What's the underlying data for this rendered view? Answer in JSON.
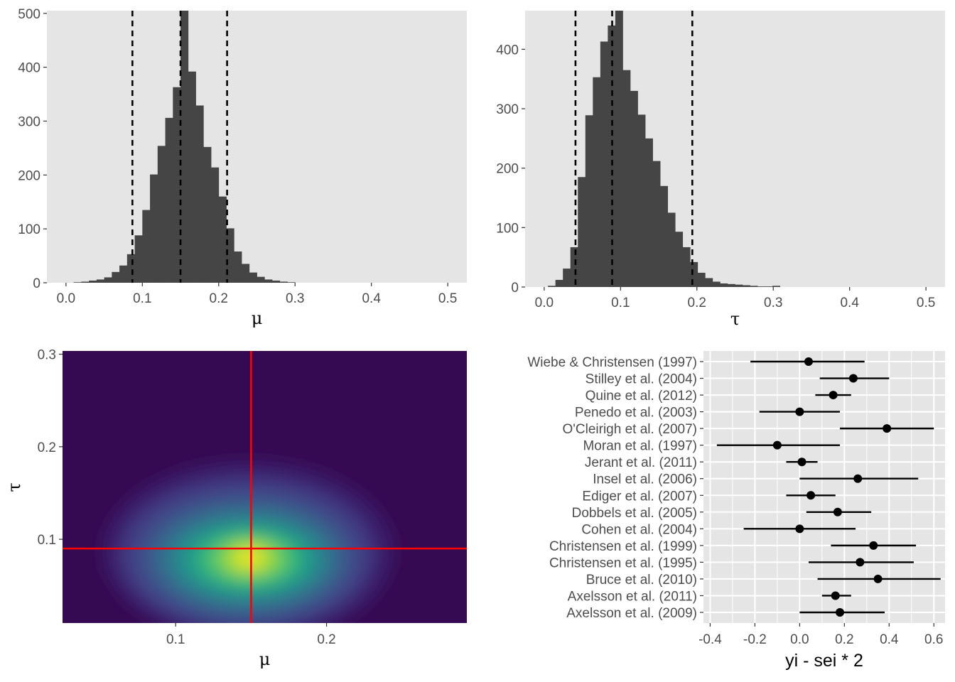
{
  "colors": {
    "panel_bg": "#e5e5e5",
    "bar": "#454545",
    "grid": "#ffffff",
    "crosshair": "#ff0000",
    "tick_text": "#4d4d4d"
  },
  "chart_data": [
    {
      "type": "bar",
      "id": "mu_hist",
      "xlabel": "μ",
      "xlim": [
        -0.025,
        0.525
      ],
      "ylim": [
        0,
        505
      ],
      "xticks": [
        "0.0",
        "0.1",
        "0.2",
        "0.3",
        "0.4",
        "0.5"
      ],
      "yticks": [
        "0",
        "100",
        "200",
        "300",
        "400",
        "500"
      ],
      "bin_width": 0.01,
      "bin_starts": [
        0.01,
        0.02,
        0.03,
        0.04,
        0.05,
        0.06,
        0.07,
        0.08,
        0.09,
        0.1,
        0.11,
        0.12,
        0.13,
        0.14,
        0.15,
        0.16,
        0.17,
        0.18,
        0.19,
        0.2,
        0.21,
        0.22,
        0.23,
        0.24,
        0.25,
        0.26,
        0.27,
        0.28,
        0.29
      ],
      "counts": [
        1,
        2,
        4,
        6,
        10,
        20,
        32,
        53,
        88,
        135,
        201,
        254,
        306,
        363,
        505,
        392,
        329,
        252,
        214,
        160,
        101,
        58,
        35,
        19,
        11,
        6,
        4,
        2,
        1
      ],
      "vlines": [
        0.087,
        0.15,
        0.211
      ],
      "grid": false
    },
    {
      "type": "bar",
      "id": "tau_hist",
      "xlabel": "τ",
      "xlim": [
        -0.025,
        0.525
      ],
      "ylim": [
        0,
        465
      ],
      "xticks": [
        "0.0",
        "0.1",
        "0.2",
        "0.3",
        "0.4",
        "0.5"
      ],
      "yticks": [
        "0",
        "100",
        "200",
        "300",
        "400"
      ],
      "bin_width": 0.0098,
      "bin_starts": [
        0.0049,
        0.0147,
        0.0245,
        0.0343,
        0.0441,
        0.0539,
        0.0637,
        0.0735,
        0.0833,
        0.0931,
        0.1029,
        0.1127,
        0.1225,
        0.1323,
        0.1421,
        0.1519,
        0.1617,
        0.1715,
        0.1813,
        0.1911,
        0.2009,
        0.2107,
        0.2205,
        0.2303,
        0.2401,
        0.2499,
        0.2597,
        0.2695,
        0.2793,
        0.2891,
        0.2989
      ],
      "counts": [
        2,
        12,
        31,
        67,
        185,
        289,
        353,
        413,
        440,
        465,
        365,
        330,
        290,
        250,
        212,
        170,
        125,
        93,
        67,
        42,
        24,
        15,
        9,
        6,
        5,
        4,
        3,
        2,
        1,
        1,
        2
      ],
      "vlines": [
        0.041,
        0.089,
        0.194
      ],
      "grid": false
    },
    {
      "type": "heatmap",
      "id": "joint_density",
      "xlabel": "μ",
      "ylabel": "τ",
      "xlim": [
        0.025,
        0.293
      ],
      "ylim": [
        0.0095,
        0.3035
      ],
      "xticks": [
        "0.1",
        "0.2"
      ],
      "yticks": [
        "0.1",
        "0.2",
        "0.3"
      ],
      "mode": {
        "mu": 0.149,
        "tau": 0.082
      },
      "crosshair": {
        "mu": 0.15,
        "tau": 0.09
      },
      "palette": "viridis",
      "grid": false
    },
    {
      "type": "scatter",
      "id": "forest",
      "xlabel": "yi - sei * 2",
      "xlim": [
        -0.43,
        0.65
      ],
      "xticks": [
        "-0.4",
        "-0.2",
        "0.0",
        "0.2",
        "0.4",
        "0.6"
      ],
      "grid": true,
      "studies": [
        {
          "label": "Wiebe & Christensen (1997)",
          "est": 0.04,
          "lo": -0.22,
          "hi": 0.29
        },
        {
          "label": "Stilley et al. (2004)",
          "est": 0.24,
          "lo": 0.09,
          "hi": 0.4
        },
        {
          "label": "Quine et al. (2012)",
          "est": 0.15,
          "lo": 0.07,
          "hi": 0.23
        },
        {
          "label": "Penedo et al. (2003)",
          "est": 0.0,
          "lo": -0.18,
          "hi": 0.18
        },
        {
          "label": "O'Cleirigh et al. (2007)",
          "est": 0.39,
          "lo": 0.18,
          "hi": 0.6
        },
        {
          "label": "Moran et al. (1997)",
          "est": -0.1,
          "lo": -0.37,
          "hi": 0.18
        },
        {
          "label": "Jerant et al. (2011)",
          "est": 0.01,
          "lo": -0.06,
          "hi": 0.08
        },
        {
          "label": "Insel et al. (2006)",
          "est": 0.26,
          "lo": 0.0,
          "hi": 0.53
        },
        {
          "label": "Ediger et al. (2007)",
          "est": 0.05,
          "lo": -0.06,
          "hi": 0.16
        },
        {
          "label": "Dobbels et al. (2005)",
          "est": 0.17,
          "lo": 0.03,
          "hi": 0.32
        },
        {
          "label": "Cohen et al. (2004)",
          "est": 0.0,
          "lo": -0.25,
          "hi": 0.25
        },
        {
          "label": "Christensen et al. (1999)",
          "est": 0.33,
          "lo": 0.14,
          "hi": 0.52
        },
        {
          "label": "Christensen et al. (1995)",
          "est": 0.27,
          "lo": 0.04,
          "hi": 0.51
        },
        {
          "label": "Bruce et al. (2010)",
          "est": 0.35,
          "lo": 0.08,
          "hi": 0.63
        },
        {
          "label": "Axelsson et al. (2011)",
          "est": 0.16,
          "lo": 0.1,
          "hi": 0.23
        },
        {
          "label": "Axelsson et al. (2009)",
          "est": 0.18,
          "lo": 0.0,
          "hi": 0.38
        }
      ]
    }
  ]
}
